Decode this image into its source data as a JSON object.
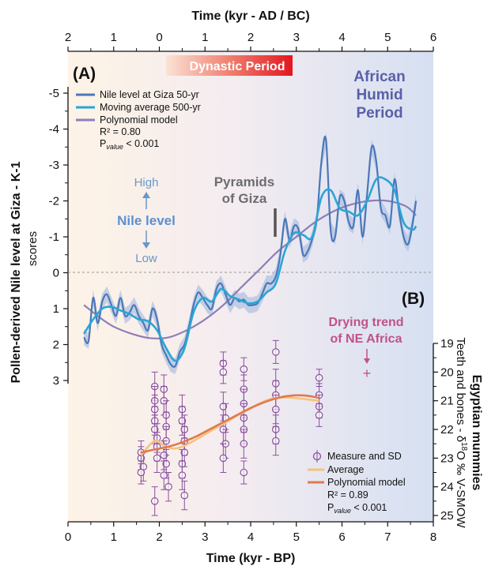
{
  "chart_data": [
    {
      "panel": "(A)",
      "type": "line",
      "x_top": {
        "label": "Time (kyr - AD / BC)",
        "ticks": [
          "2",
          "1",
          "0",
          "1",
          "2",
          "3",
          "4",
          "5",
          "6"
        ]
      },
      "x_bottom": {
        "label": "Time (kyr - BP)",
        "ticks": [
          "0",
          "1",
          "2",
          "3",
          "4",
          "5",
          "6",
          "7",
          "8"
        ],
        "xlim": [
          0,
          8
        ]
      },
      "y": {
        "label": "Pollen-derived Nile level at Giza - K-1",
        "sublabel": "scores",
        "ticks": [
          "-5",
          "-4",
          "-3",
          "-2",
          "-1",
          "0",
          "1",
          "2",
          "3"
        ],
        "ylim": [
          -5,
          3
        ],
        "inverted": true
      },
      "series": [
        {
          "name": "Nile level at Giza 50-yr",
          "color": "#4a78b8",
          "x": [
            0.35,
            0.45,
            0.55,
            0.65,
            0.75,
            0.85,
            0.95,
            1.05,
            1.15,
            1.25,
            1.35,
            1.45,
            1.55,
            1.65,
            1.75,
            1.85,
            1.95,
            2.05,
            2.15,
            2.25,
            2.35,
            2.45,
            2.55,
            2.65,
            2.75,
            2.85,
            2.95,
            3.05,
            3.15,
            3.25,
            3.35,
            3.45,
            3.55,
            3.65,
            3.75,
            3.85,
            3.95,
            4.05,
            4.15,
            4.25,
            4.35,
            4.45,
            4.55,
            4.65,
            4.75,
            4.85,
            4.95,
            5.05,
            5.15,
            5.25,
            5.35,
            5.45,
            5.55,
            5.65,
            5.75,
            5.85,
            5.95,
            6.05,
            6.15,
            6.25,
            6.35,
            6.45,
            6.55,
            6.65,
            6.75,
            6.85,
            6.95,
            7.05,
            7.15,
            7.25,
            7.35,
            7.45,
            7.55,
            7.62
          ],
          "values": [
            1.8,
            1.9,
            0.7,
            1.4,
            0.8,
            0.6,
            0.9,
            1.2,
            0.7,
            1.2,
            1.1,
            0.9,
            1.2,
            1.4,
            1.6,
            1.0,
            1.3,
            2.0,
            2.3,
            2.55,
            2.6,
            2.2,
            2.0,
            1.5,
            0.9,
            0.55,
            0.7,
            0.9,
            1.0,
            0.45,
            0.3,
            0.6,
            0.9,
            0.7,
            0.8,
            0.75,
            0.9,
            0.9,
            0.85,
            0.6,
            0.3,
            0.3,
            0.1,
            -0.5,
            -1.5,
            -0.9,
            -1.3,
            -1.2,
            -0.5,
            -0.6,
            -0.95,
            -1.5,
            -3.1,
            -3.7,
            -1.2,
            -1.0,
            -2.1,
            -2.0,
            -1.4,
            -1.3,
            -2.3,
            -1.0,
            -2.2,
            -3.5,
            -3.1,
            -1.8,
            -1.6,
            -1.3,
            -2.6,
            -1.7,
            -1.0,
            -0.8,
            -1.4,
            -2.0
          ],
          "band": "#aebfdf"
        },
        {
          "name": "Moving average 500-yr",
          "color": "#29a6d6",
          "x": [
            0.35,
            0.55,
            0.75,
            0.95,
            1.15,
            1.35,
            1.55,
            1.75,
            1.95,
            2.15,
            2.35,
            2.55,
            2.75,
            2.95,
            3.15,
            3.35,
            3.55,
            3.75,
            3.95,
            4.15,
            4.35,
            4.55,
            4.75,
            4.95,
            5.15,
            5.35,
            5.55,
            5.75,
            5.95,
            6.15,
            6.35,
            6.55,
            6.75,
            6.95,
            7.15,
            7.35,
            7.55,
            7.62
          ],
          "values": [
            1.7,
            1.3,
            1.0,
            0.95,
            1.05,
            1.15,
            1.3,
            1.35,
            1.6,
            2.1,
            2.45,
            2.1,
            1.1,
            0.7,
            0.8,
            0.45,
            0.65,
            0.75,
            0.85,
            0.8,
            0.55,
            0.3,
            -0.6,
            -1.1,
            -1.05,
            -1.0,
            -2.1,
            -2.3,
            -1.8,
            -1.7,
            -1.6,
            -2.0,
            -2.6,
            -2.6,
            -2.3,
            -1.4,
            -1.2,
            -1.3
          ]
        },
        {
          "name": "Polynomial model",
          "color": "#8d7eb8",
          "x": [
            0.35,
            0.7,
            1.0,
            1.4,
            1.8,
            2.2,
            2.6,
            3.0,
            3.4,
            3.8,
            4.2,
            4.6,
            5.0,
            5.4,
            5.8,
            6.2,
            6.6,
            7.0,
            7.4,
            7.62
          ],
          "values": [
            0.9,
            1.25,
            1.5,
            1.7,
            1.82,
            1.8,
            1.6,
            1.3,
            0.9,
            0.4,
            -0.1,
            -0.6,
            -1.0,
            -1.4,
            -1.7,
            -1.9,
            -2.0,
            -2.0,
            -1.85,
            -1.6
          ]
        }
      ],
      "legend": [
        "Nile level at Giza 50-yr",
        "Moving average 500-yr",
        "Polynomial model"
      ],
      "stats": {
        "r2": "R² = 0.80",
        "p_prefix": "P",
        "p_sub": "value",
        "p_suffix": " < 0.001"
      },
      "annotations": {
        "dynastic": "Dynastic Period",
        "ahp_line1": "African",
        "ahp_line2": "Humid",
        "ahp_line3": "Period",
        "pyramids_line1": "Pyramids",
        "pyramids_line2": "of Giza",
        "high": "High",
        "nile_level": "Nile level",
        "low": "Low"
      }
    },
    {
      "panel": "(B)",
      "type": "scatter",
      "y": {
        "label_line1": "Egyptian mummies",
        "label_line2_prefix": "Teeth and bones - δ",
        "label_line2_sup": "18",
        "label_line2_suffix": "O ‰ V-SMOW",
        "ticks": [
          "19",
          "20",
          "21",
          "22",
          "23",
          "24",
          "25"
        ],
        "ylim": [
          19,
          25
        ],
        "inverted": true
      },
      "series": [
        {
          "name": "Measure and SD",
          "color": "#8a4f9e",
          "points": [
            [
              1.6,
              23.0,
              0.4
            ],
            [
              1.6,
              22.8,
              0.4
            ],
            [
              1.65,
              23.3,
              0.5
            ],
            [
              1.6,
              23.5,
              0.4
            ],
            [
              1.9,
              20.5,
              0.5
            ],
            [
              1.9,
              21.0,
              0.5
            ],
            [
              1.9,
              21.3,
              0.5
            ],
            [
              1.9,
              21.7,
              0.5
            ],
            [
              1.9,
              22.0,
              0.5
            ],
            [
              1.95,
              22.3,
              0.5
            ],
            [
              1.95,
              22.6,
              0.5
            ],
            [
              1.95,
              23.0,
              0.5
            ],
            [
              1.9,
              24.5,
              0.5
            ],
            [
              2.1,
              20.6,
              0.5
            ],
            [
              2.1,
              21.0,
              0.5
            ],
            [
              2.15,
              21.5,
              0.5
            ],
            [
              2.15,
              21.9,
              0.5
            ],
            [
              2.15,
              22.4,
              0.5
            ],
            [
              2.1,
              22.9,
              0.5
            ],
            [
              2.15,
              23.2,
              0.5
            ],
            [
              2.1,
              23.6,
              0.5
            ],
            [
              2.2,
              24.0,
              0.5
            ],
            [
              2.5,
              21.3,
              0.5
            ],
            [
              2.5,
              21.7,
              0.5
            ],
            [
              2.55,
              22.0,
              0.5
            ],
            [
              2.55,
              22.4,
              0.5
            ],
            [
              2.55,
              22.8,
              0.5
            ],
            [
              2.5,
              23.2,
              0.5
            ],
            [
              2.5,
              23.6,
              0.5
            ],
            [
              2.55,
              24.3,
              0.5
            ],
            [
              3.4,
              19.7,
              0.4
            ],
            [
              3.4,
              20.0,
              0.4
            ],
            [
              3.4,
              21.2,
              0.5
            ],
            [
              3.45,
              21.6,
              0.5
            ],
            [
              3.4,
              22.0,
              0.5
            ],
            [
              3.45,
              22.5,
              0.5
            ],
            [
              3.4,
              23.0,
              0.5
            ],
            [
              3.85,
              19.9,
              0.4
            ],
            [
              3.85,
              20.6,
              0.5
            ],
            [
              3.85,
              21.1,
              0.5
            ],
            [
              3.85,
              21.6,
              0.5
            ],
            [
              3.85,
              22.0,
              0.5
            ],
            [
              3.85,
              22.5,
              0.5
            ],
            [
              3.85,
              23.5,
              0.4
            ],
            [
              4.55,
              19.3,
              0.4
            ],
            [
              4.55,
              20.4,
              0.5
            ],
            [
              4.55,
              20.8,
              0.5
            ],
            [
              4.55,
              21.3,
              0.5
            ],
            [
              4.55,
              22.0,
              0.5
            ],
            [
              4.55,
              22.4,
              0.5
            ],
            [
              5.5,
              20.2,
              0.3
            ],
            [
              5.5,
              20.8,
              0.4
            ],
            [
              5.5,
              21.2,
              0.4
            ],
            [
              5.5,
              21.5,
              0.4
            ]
          ]
        },
        {
          "name": "Average",
          "color": "#f5c27a",
          "x": [
            1.6,
            1.9,
            2.15,
            2.5,
            3.4,
            3.85,
            4.55,
            5.5
          ],
          "values": [
            22.9,
            22.4,
            22.6,
            22.6,
            21.8,
            21.4,
            20.9,
            21.0
          ]
        },
        {
          "name": "Polynomial model",
          "color": "#e07a4e",
          "x": [
            1.6,
            1.9,
            2.2,
            2.5,
            2.8,
            3.1,
            3.4,
            3.7,
            4.0,
            4.3,
            4.6,
            4.9,
            5.2,
            5.5
          ],
          "values": [
            22.8,
            22.7,
            22.6,
            22.45,
            22.25,
            22.0,
            21.75,
            21.5,
            21.25,
            21.05,
            20.9,
            20.82,
            20.82,
            20.9
          ]
        }
      ],
      "legend": [
        "Measure and SD",
        "Average",
        "Polynomial model"
      ],
      "stats": {
        "r2": "R² = 0.89",
        "p_prefix": "P",
        "p_sub": "value",
        "p_suffix": " < 0.001"
      },
      "annotations": {
        "drying_line1": "Drying trend",
        "drying_line2": "of NE Africa",
        "drying_symbol": "+"
      }
    }
  ]
}
